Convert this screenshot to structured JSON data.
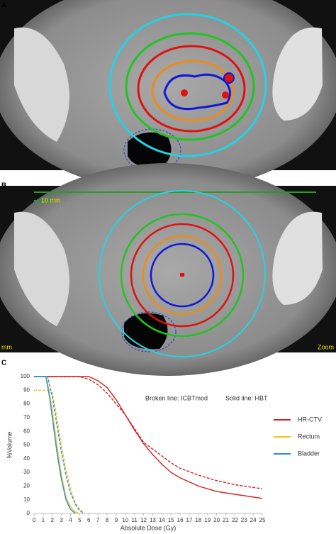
{
  "panels": [
    {
      "label": "A"
    },
    {
      "label": "B",
      "scale_bar": "10 mm",
      "corner_left": "mm",
      "corner_right": "Zoom"
    },
    {
      "label": "C"
    }
  ],
  "chart_data": {
    "type": "line",
    "x_label": "Absolute Dose (Gy)",
    "y_label": "%Volume",
    "annotations": [
      "Broken line: ICBTmod",
      "Solid line: HBT"
    ],
    "xlim": [
      0,
      25
    ],
    "ylim": [
      0,
      100
    ],
    "xticks": [
      0,
      1,
      2,
      3,
      4,
      5,
      6,
      7,
      8,
      9,
      10,
      11,
      12,
      13,
      14,
      15,
      16,
      17,
      18,
      19,
      20,
      21,
      22,
      23,
      24,
      25
    ],
    "yticks": [
      0,
      10,
      20,
      30,
      40,
      50,
      60,
      70,
      80,
      90,
      100
    ],
    "grid": false,
    "legend": "right",
    "series": [
      {
        "name": "HR-CTV",
        "color": "#d61f1f",
        "curves": [
          {
            "style": "solid",
            "x": [
              0,
              6,
              7,
              8,
              9,
              10,
              11,
              12,
              13,
              14,
              15,
              16,
              18,
              20,
              22,
              25
            ],
            "values": [
              100,
              100,
              97,
              92,
              83,
              72,
              61,
              51,
              43,
              36,
              30,
              26,
              20,
              16,
              14,
              11
            ]
          },
          {
            "style": "dashed",
            "x": [
              0,
              5,
              6,
              7,
              8,
              9,
              10,
              11,
              12,
              13,
              14,
              15,
              16,
              18,
              20,
              22,
              25
            ],
            "values": [
              100,
              100,
              98,
              94,
              88,
              80,
              72,
              62,
              52,
              47,
              42,
              37,
              33,
              28,
              24,
              21,
              18
            ]
          }
        ]
      },
      {
        "name": "Rectum",
        "color": "#f2c40f",
        "curves": [
          {
            "style": "solid",
            "x": [
              0,
              1.3,
              1.5,
              2,
              2.5,
              3,
              3.5,
              4,
              4.5,
              5
            ],
            "values": [
              100,
              100,
              95,
              75,
              50,
              28,
              12,
              5,
              1,
              0
            ]
          },
          {
            "style": "dashed",
            "x": [
              0,
              1.5,
              2,
              2.5,
              3,
              3.5,
              4,
              4.5,
              5,
              5.5
            ],
            "values": [
              90,
              90,
              88,
              70,
              50,
              32,
              18,
              8,
              3,
              0
            ]
          }
        ]
      },
      {
        "name": "Bladder",
        "color": "#2b8fd8",
        "curves": [
          {
            "style": "solid",
            "x": [
              0,
              1.3,
              1.7,
              2,
              2.5,
              3,
              3.5,
              4,
              4.5
            ],
            "values": [
              100,
              100,
              85,
              70,
              45,
              25,
              10,
              3,
              0
            ]
          },
          {
            "style": "dashed",
            "x": [
              0,
              1.5,
              2,
              2.5,
              3,
              3.5,
              4,
              4.5,
              5,
              5.5
            ],
            "values": [
              100,
              100,
              85,
              65,
              45,
              28,
              15,
              7,
              2,
              0
            ]
          }
        ]
      }
    ]
  }
}
